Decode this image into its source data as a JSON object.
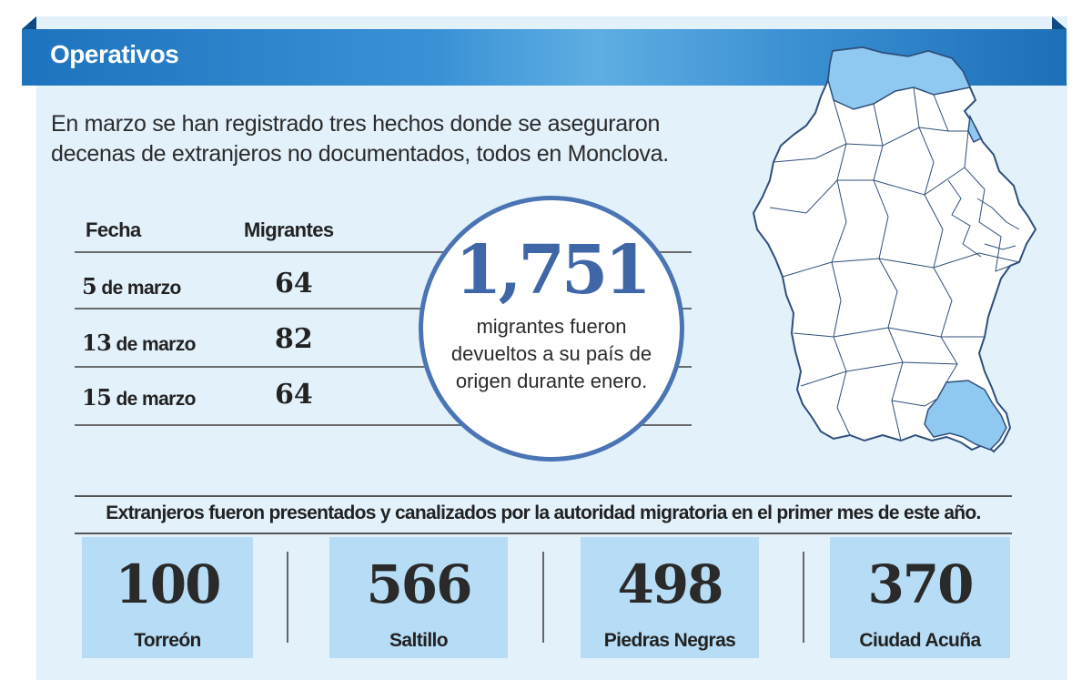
{
  "header": {
    "title": "Operativos"
  },
  "intro": {
    "text": "En marzo se han registrado tres hechos donde se aseguraron decenas de extranjeros no documentados, todos en Monclova."
  },
  "table": {
    "headers": {
      "fecha": "Fecha",
      "migrantes": "Migrantes"
    },
    "rows": [
      {
        "day": "5",
        "month": "de marzo",
        "value": "64"
      },
      {
        "day": "13",
        "month": "de marzo",
        "value": "82"
      },
      {
        "day": "15",
        "month": "de marzo",
        "value": "64"
      }
    ]
  },
  "highlight": {
    "number": "1,751",
    "text": "migrantes fueron devueltos a su país de origen durante enero."
  },
  "stats": {
    "caption": "Extranjeros fueron presentados y canalizados por la autoridad migratoria en el primer mes de este año.",
    "items": [
      {
        "value": "100",
        "city": "Torreón"
      },
      {
        "value": "566",
        "city": "Saltillo"
      },
      {
        "value": "498",
        "city": "Piedras Negras"
      },
      {
        "value": "370",
        "city": "Ciudad Acuña"
      }
    ]
  },
  "map": {
    "region_fill": "#ffffff",
    "highlight_fill": "#8fc8f0",
    "stroke": "#2f4f7a"
  }
}
